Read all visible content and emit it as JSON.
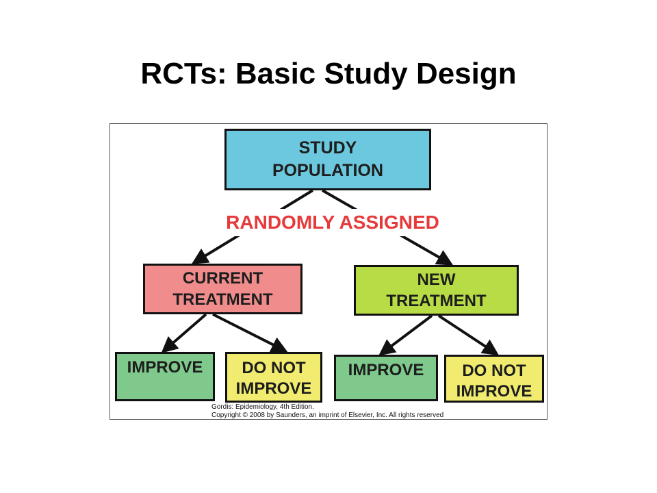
{
  "title": "RCTs: Basic Study Design",
  "diagram": {
    "population": {
      "label": "STUDY\nPOPULATION",
      "color": "#6cc8de"
    },
    "assignment": {
      "label": "RANDOMLY ASSIGNED",
      "color": "#e63a3a"
    },
    "arms": [
      {
        "label": "CURRENT\nTREATMENT",
        "color": "#f08c8c",
        "outcomes": [
          {
            "label": "IMPROVE",
            "color": "#7ec98b"
          },
          {
            "label": "DO NOT\nIMPROVE",
            "color": "#f1ec6f"
          }
        ]
      },
      {
        "label": "NEW\nTREATMENT",
        "color": "#b7dc45",
        "outcomes": [
          {
            "label": "IMPROVE",
            "color": "#7ec98b"
          },
          {
            "label": "DO NOT\nIMPROVE",
            "color": "#f1ec6f"
          }
        ]
      }
    ]
  },
  "credit": {
    "line1": "Gordis: Epidemiology, 4th Edition.",
    "line2": "Copyright © 2008 by Saunders, an imprint of Elsevier, Inc. All rights reserved"
  }
}
